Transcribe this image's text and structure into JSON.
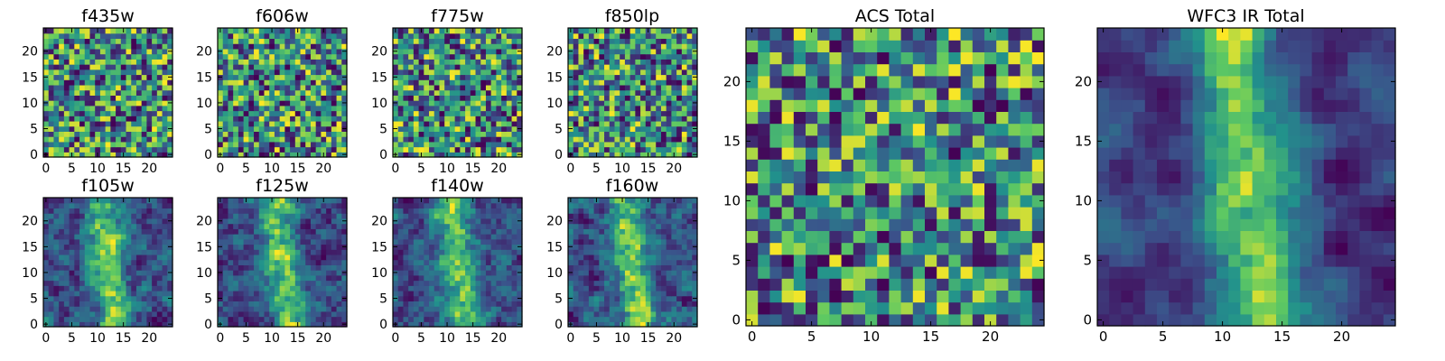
{
  "figure": {
    "grid_size": 25,
    "colormap": "viridis",
    "colormap_stops": [
      "#440154",
      "#3b528b",
      "#21918c",
      "#5ec962",
      "#fde725"
    ]
  },
  "chart_data": [
    {
      "type": "heatmap",
      "title": "f435w",
      "xlim": [
        0,
        24
      ],
      "ylim": [
        0,
        24
      ],
      "xticks": [
        0,
        5,
        10,
        15,
        20
      ],
      "yticks": [
        0,
        5,
        10,
        15,
        20
      ],
      "seed": 11,
      "smooth": 0,
      "bias": 0.55
    },
    {
      "type": "heatmap",
      "title": "f606w",
      "xlim": [
        0,
        24
      ],
      "ylim": [
        0,
        24
      ],
      "xticks": [
        0,
        5,
        10,
        15,
        20
      ],
      "yticks": [
        0,
        5,
        10,
        15,
        20
      ],
      "seed": 23,
      "smooth": 0,
      "bias": 0.58
    },
    {
      "type": "heatmap",
      "title": "f775w",
      "xlim": [
        0,
        24
      ],
      "ylim": [
        0,
        24
      ],
      "xticks": [
        0,
        5,
        10,
        15,
        20
      ],
      "yticks": [
        0,
        5,
        10,
        15,
        20
      ],
      "seed": 37,
      "smooth": 0,
      "bias": 0.56
    },
    {
      "type": "heatmap",
      "title": "f850lp",
      "xlim": [
        0,
        24
      ],
      "ylim": [
        0,
        24
      ],
      "xticks": [
        0,
        5,
        10,
        15,
        20
      ],
      "yticks": [
        0,
        5,
        10,
        15,
        20
      ],
      "seed": 41,
      "smooth": 0,
      "bias": 0.48
    },
    {
      "type": "heatmap",
      "title": "f105w",
      "xlim": [
        0,
        24
      ],
      "ylim": [
        0,
        24
      ],
      "xticks": [
        0,
        5,
        10,
        15,
        20
      ],
      "yticks": [
        0,
        5,
        10,
        15,
        20
      ],
      "seed": 53,
      "smooth": 1,
      "bias": 0.6
    },
    {
      "type": "heatmap",
      "title": "f125w",
      "xlim": [
        0,
        24
      ],
      "ylim": [
        0,
        24
      ],
      "xticks": [
        0,
        5,
        10,
        15,
        20
      ],
      "yticks": [
        0,
        5,
        10,
        15,
        20
      ],
      "seed": 67,
      "smooth": 1,
      "bias": 0.62
    },
    {
      "type": "heatmap",
      "title": "f140w",
      "xlim": [
        0,
        24
      ],
      "ylim": [
        0,
        24
      ],
      "xticks": [
        0,
        5,
        10,
        15,
        20
      ],
      "yticks": [
        0,
        5,
        10,
        15,
        20
      ],
      "seed": 71,
      "smooth": 1,
      "bias": 0.55
    },
    {
      "type": "heatmap",
      "title": "f160w",
      "xlim": [
        0,
        24
      ],
      "ylim": [
        0,
        24
      ],
      "xticks": [
        0,
        5,
        10,
        15,
        20
      ],
      "yticks": [
        0,
        5,
        10,
        15,
        20
      ],
      "seed": 83,
      "smooth": 1,
      "bias": 0.5
    },
    {
      "type": "heatmap",
      "title": "ACS Total",
      "xlim": [
        0,
        24
      ],
      "ylim": [
        0,
        24
      ],
      "xticks": [
        0,
        5,
        10,
        15,
        20
      ],
      "yticks": [
        0,
        5,
        10,
        15,
        20
      ],
      "seed": 97,
      "smooth": 0,
      "bias": 0.62
    },
    {
      "type": "heatmap",
      "title": "WFC3 IR Total",
      "xlim": [
        0,
        24
      ],
      "ylim": [
        0,
        24
      ],
      "xticks": [
        0,
        5,
        10,
        15,
        20
      ],
      "yticks": [
        0,
        5,
        10,
        15,
        20
      ],
      "seed": 101,
      "smooth": 2,
      "bias": 0.58
    }
  ]
}
